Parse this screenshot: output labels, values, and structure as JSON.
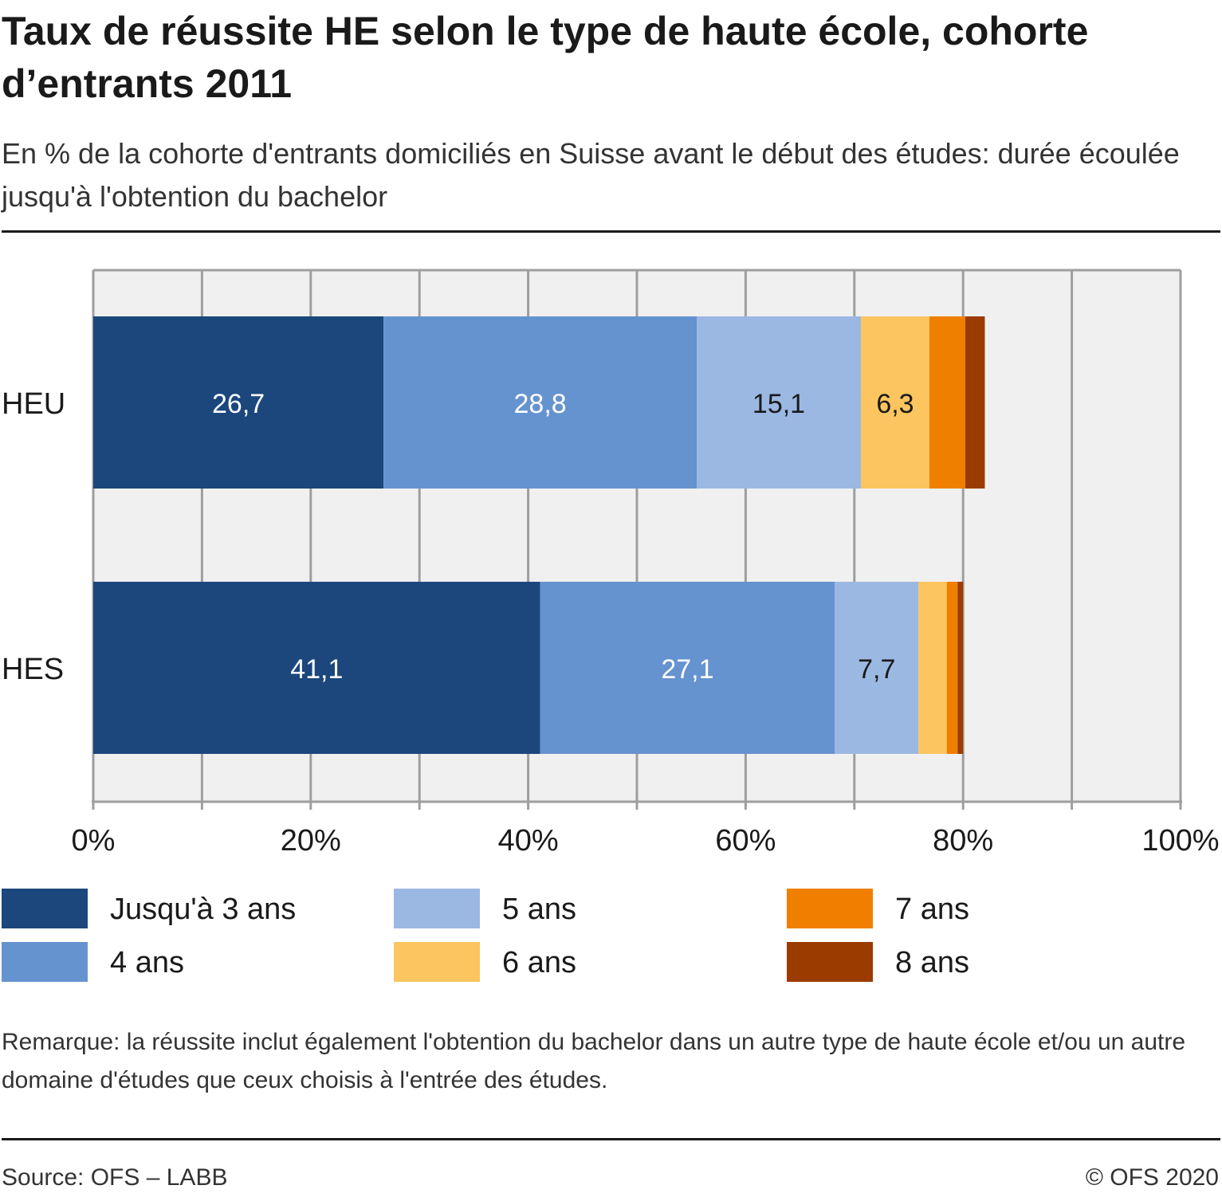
{
  "header": {
    "title": "Taux de réussite HE selon le type de haute école, cohorte d’entrants 2011",
    "subtitle": "En % de la cohorte d'entrants domiciliés en Suisse avant le début des études: durée écoulée jusqu'à l'obtention du bachelor"
  },
  "chart_data": {
    "type": "bar",
    "orientation": "horizontal",
    "stacked": true,
    "categories": [
      "HEU",
      "HES"
    ],
    "series": [
      {
        "name": "Jusqu'à 3 ans",
        "color": "#1b477c",
        "values": [
          26.7,
          41.1
        ],
        "labels": [
          "26,7",
          "41,1"
        ],
        "label_color": "#ffffff"
      },
      {
        "name": "4 ans",
        "color": "#6593cf",
        "values": [
          28.8,
          27.1
        ],
        "labels": [
          "28,8",
          "27,1"
        ],
        "label_color": "#ffffff"
      },
      {
        "name": "5 ans",
        "color": "#9bb8e3",
        "values": [
          15.1,
          7.7
        ],
        "labels": [
          "15,1",
          "7,7"
        ],
        "label_color": "#1a1a1a"
      },
      {
        "name": "6 ans",
        "color": "#fcc55f",
        "values": [
          6.3,
          2.6
        ],
        "labels": [
          "6,3",
          ""
        ],
        "label_color": "#1a1a1a"
      },
      {
        "name": "7 ans",
        "color": "#f07f00",
        "values": [
          3.3,
          1.0
        ],
        "labels": [
          "",
          ""
        ],
        "label_color": "#1a1a1a"
      },
      {
        "name": "8 ans",
        "color": "#9c3b00",
        "values": [
          1.8,
          0.5
        ],
        "labels": [
          "",
          ""
        ],
        "label_color": "#ffffff"
      }
    ],
    "x_axis": {
      "range": [
        0,
        100
      ],
      "ticks": [
        0,
        20,
        40,
        60,
        80,
        100
      ],
      "tick_labels": [
        "0%",
        "20%",
        "40%",
        "60%",
        "80%",
        "100%"
      ],
      "gridlines": [
        0,
        10,
        20,
        30,
        40,
        50,
        60,
        70,
        80,
        90,
        100
      ]
    },
    "grid": true,
    "legend_position": "bottom",
    "plot_background": "#f0f0f0",
    "gridline_color": "#9e9e9e"
  },
  "footer": {
    "note": "Remarque: la réussite inclut également l'obtention du bachelor dans un autre type de haute école et/ou un autre domaine d'études que ceux choisis à l'entrée des études.",
    "source": "Source: OFS – LABB",
    "copyright": "© OFS 2020"
  }
}
